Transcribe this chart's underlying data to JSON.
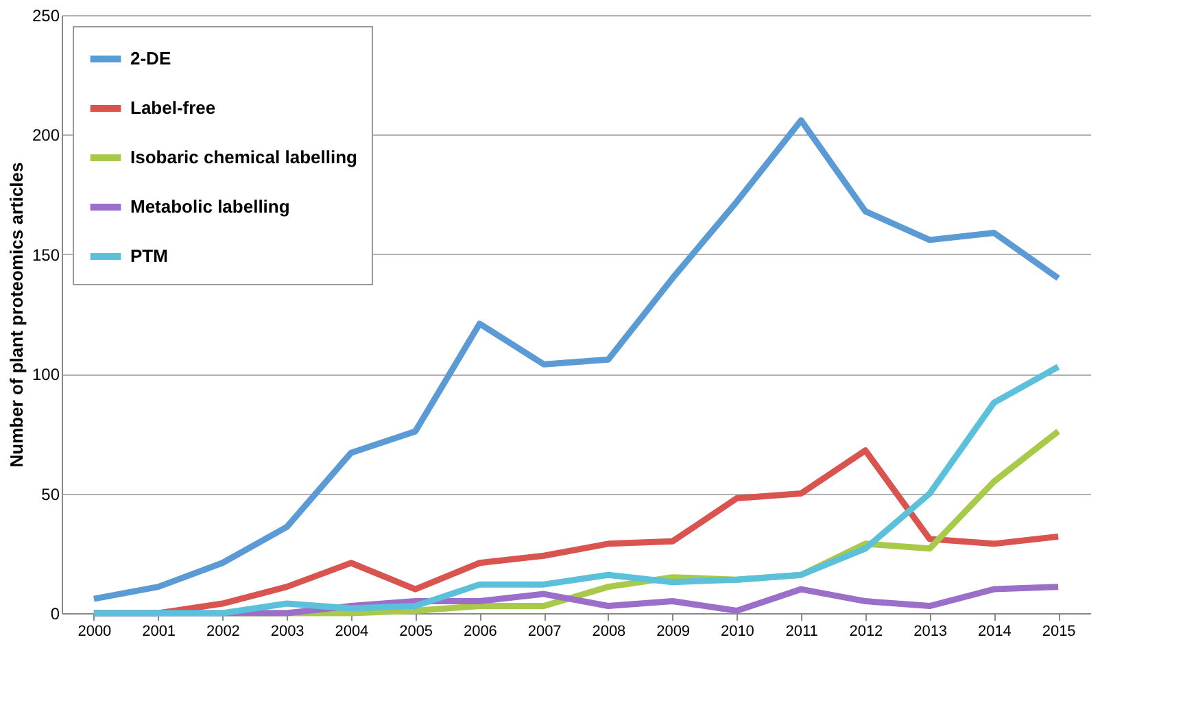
{
  "chart_data": {
    "type": "line",
    "ylabel": "Number of plant proteomics articles",
    "categories": [
      "2000",
      "2001",
      "2002",
      "2003",
      "2004",
      "2005",
      "2006",
      "2007",
      "2008",
      "2009",
      "2010",
      "2011",
      "2012",
      "2013",
      "2014",
      "2015"
    ],
    "series": [
      {
        "name": "2-DE",
        "color": "#5b9bd5",
        "values": [
          6,
          11,
          21,
          36,
          67,
          76,
          121,
          104,
          106,
          140,
          172,
          206,
          168,
          156,
          159,
          140
        ]
      },
      {
        "name": "Label-free",
        "color": "#d9534f",
        "values": [
          0,
          0,
          4,
          11,
          21,
          10,
          21,
          24,
          29,
          30,
          48,
          50,
          68,
          31,
          29,
          32
        ]
      },
      {
        "name": "Isobaric chemical labelling",
        "color": "#a9c94a",
        "values": [
          null,
          null,
          0,
          0,
          0,
          1,
          3,
          3,
          11,
          15,
          14,
          16,
          29,
          27,
          55,
          76
        ]
      },
      {
        "name": "Metabolic labelling",
        "color": "#9b6fc9",
        "values": [
          0,
          0,
          0,
          0,
          3,
          5,
          5,
          8,
          3,
          5,
          1,
          10,
          5,
          3,
          10,
          11
        ]
      },
      {
        "name": "PTM",
        "color": "#5bc0d9",
        "values": [
          0,
          0,
          0,
          4,
          2,
          3,
          12,
          12,
          16,
          13,
          14,
          16,
          27,
          50,
          88,
          103
        ]
      }
    ],
    "ylim": [
      0,
      250
    ],
    "yticks": [
      0,
      50,
      100,
      150,
      200,
      250
    ],
    "grid": "y",
    "legend": "top left",
    "marker": "none",
    "line_style": "solid"
  }
}
